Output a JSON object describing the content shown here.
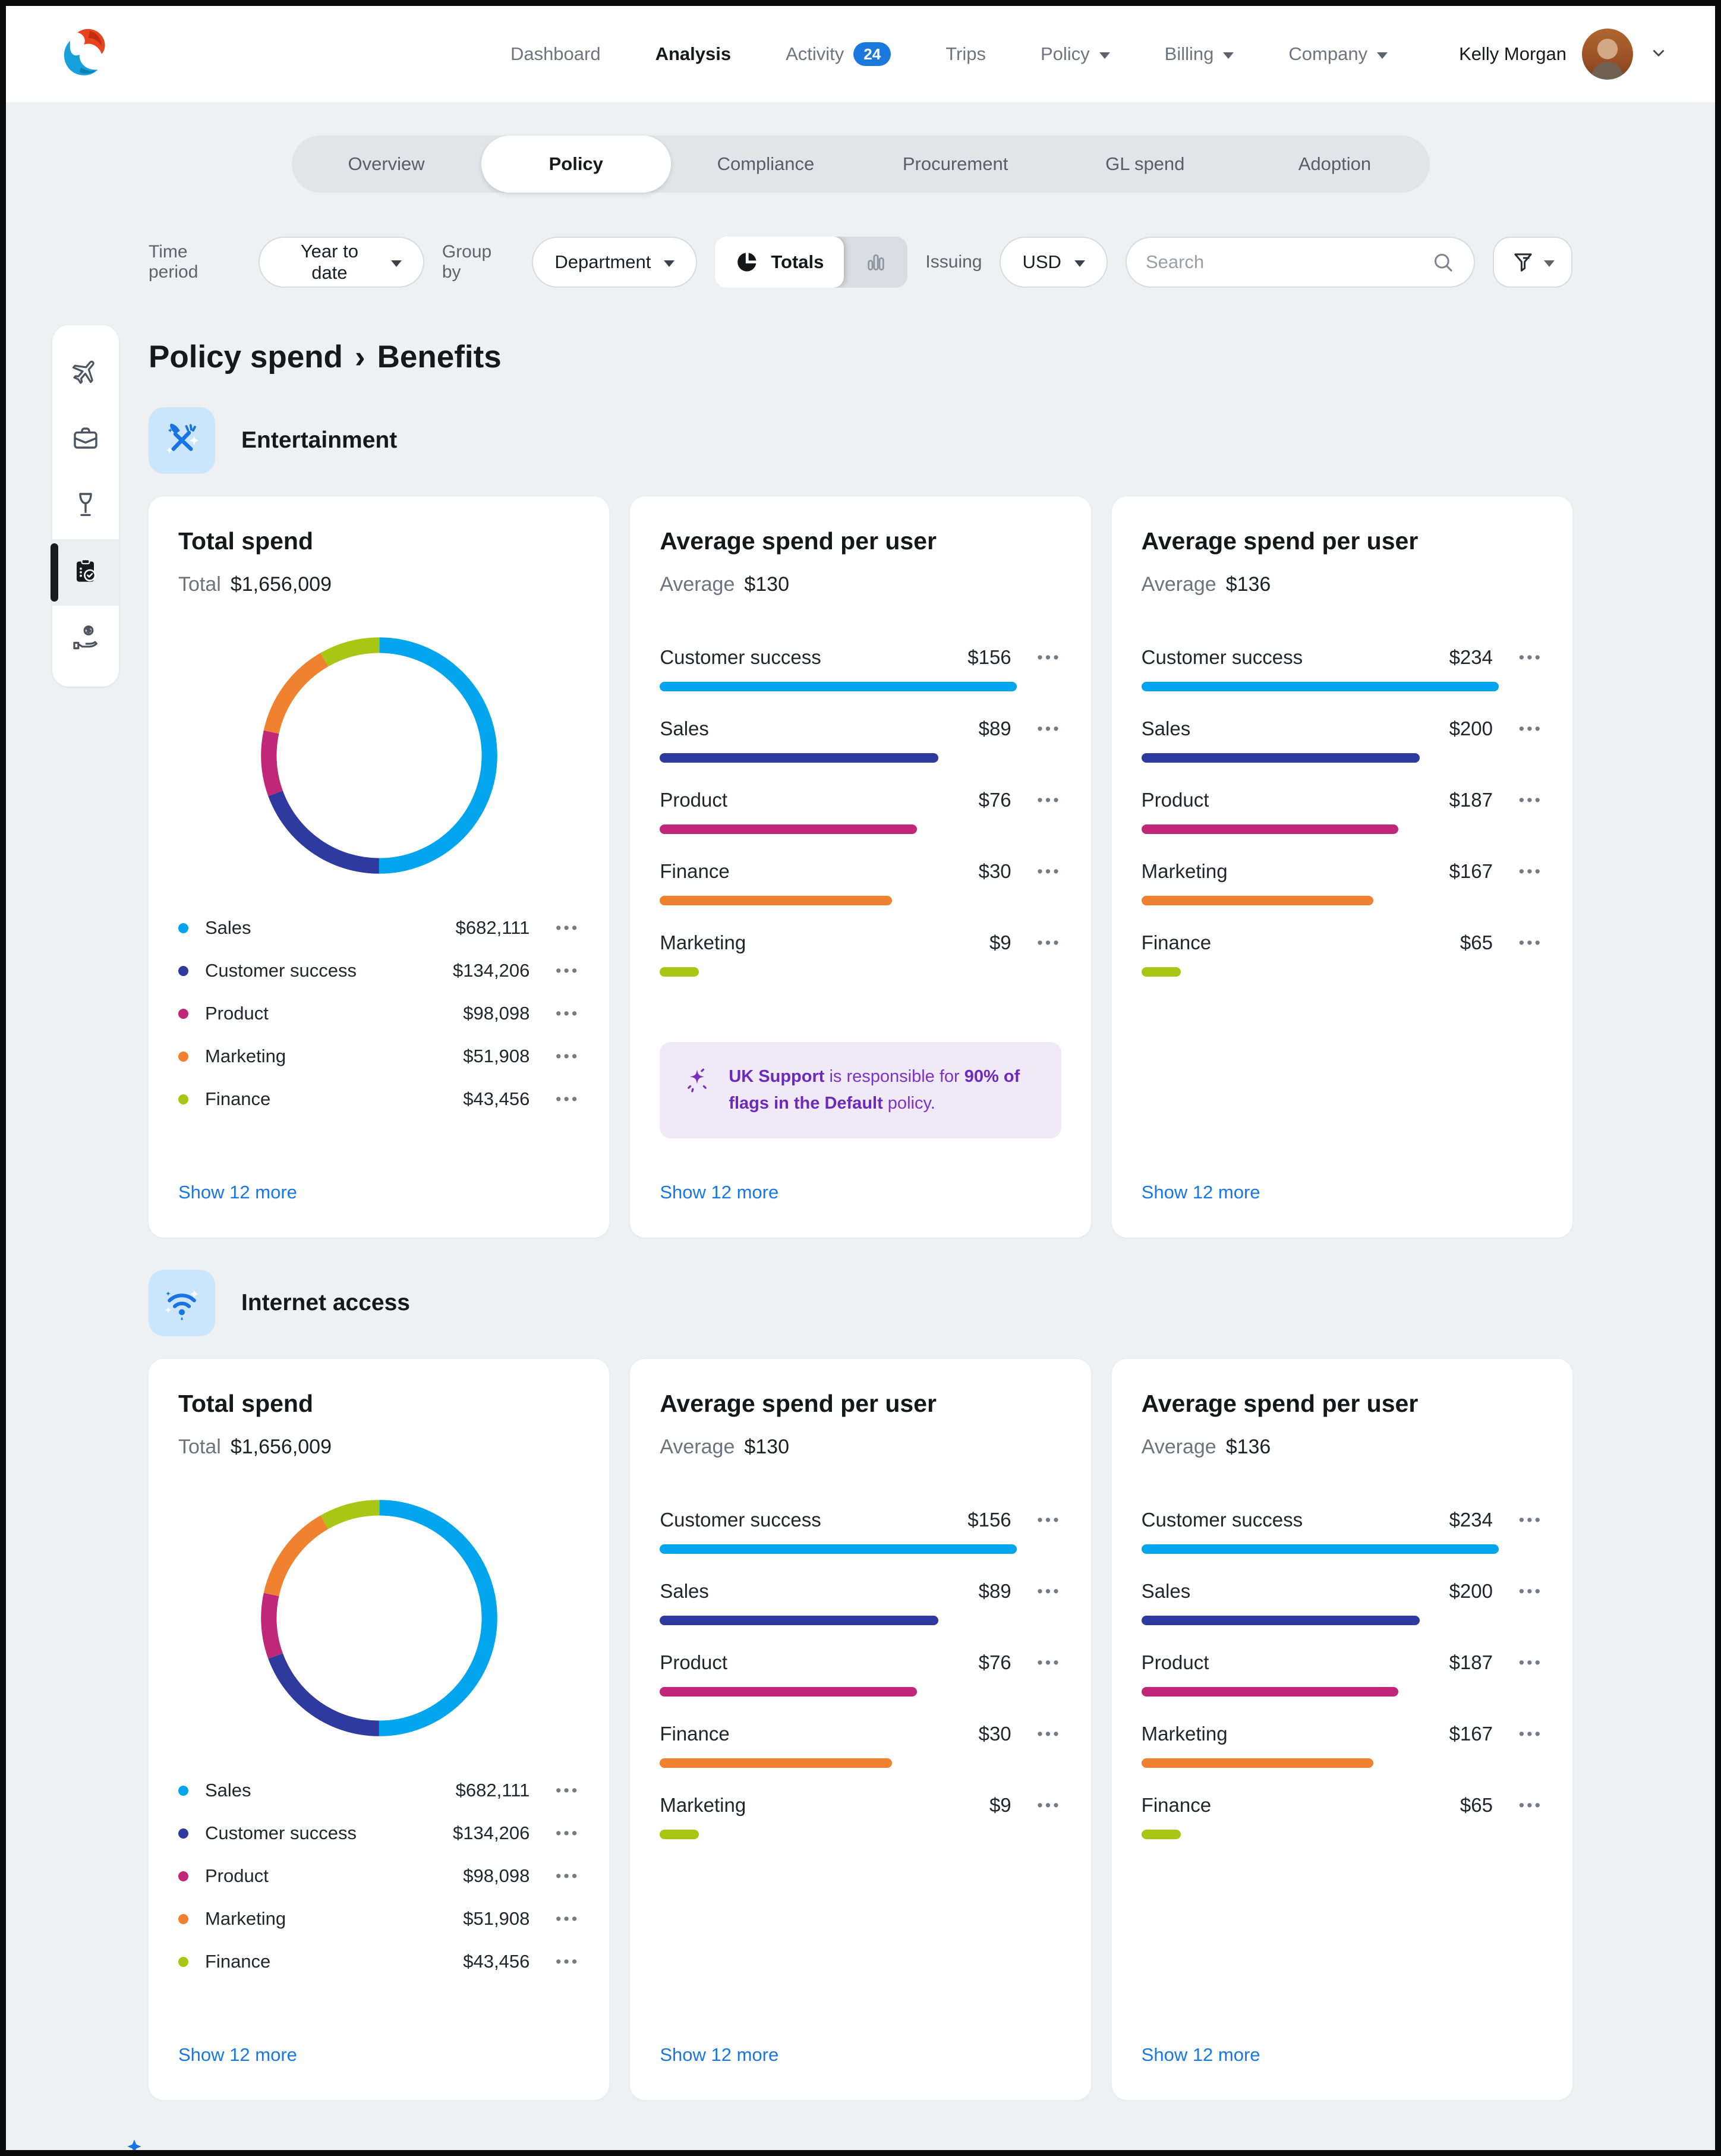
{
  "header": {
    "logo": "phoenix-swirl-logo",
    "nav_items": [
      {
        "label": "Dashboard"
      },
      {
        "label": "Analysis",
        "active": true
      },
      {
        "label": "Activity",
        "badge": "24"
      },
      {
        "label": "Trips"
      },
      {
        "label": "Policy",
        "dropdown": true
      },
      {
        "label": "Billing",
        "dropdown": true
      },
      {
        "label": "Company",
        "dropdown": true
      }
    ],
    "user": {
      "name": "Kelly Morgan",
      "avatar": "kelly-morgan-photo"
    }
  },
  "tabs": [
    {
      "label": "Overview"
    },
    {
      "label": "Policy",
      "active": true
    },
    {
      "label": "Compliance"
    },
    {
      "label": "Procurement"
    },
    {
      "label": "GL spend"
    },
    {
      "label": "Adoption"
    }
  ],
  "filters": {
    "time_period": {
      "label": "Time period",
      "value": "Year to date"
    },
    "group_by": {
      "label": "Group by",
      "value": "Department"
    },
    "view_toggle": {
      "active_label": "Totals",
      "active_icon": "pie-chart-icon",
      "inactive_icon": "bar-chart-icon"
    },
    "issuing": {
      "label": "Issuing",
      "value": "USD"
    },
    "search_placeholder": "Search"
  },
  "sidebar": [
    {
      "icon": "airplane-icon"
    },
    {
      "icon": "briefcase-icon"
    },
    {
      "icon": "wine-glass-icon"
    },
    {
      "icon": "clipboard-check-icon",
      "active": true
    },
    {
      "icon": "hand-dollar-icon"
    }
  ],
  "page_title": {
    "primary": "Policy spend",
    "separator": "›",
    "secondary": "Benefits"
  },
  "ui": {
    "menu_dots": "•••"
  },
  "colors": {
    "series": {
      "sky_blue": "#00a5ee",
      "indigo": "#2e3a9d",
      "magenta": "#c02779",
      "orange": "#f0812e",
      "lime": "#a9c614"
    },
    "link_blue": "#1877e8",
    "badge_blue": "#1b79dd",
    "callout_purple": "#7b33c9",
    "callout_bg": "#efe9f8",
    "section_icon_blue": "#1a73e2",
    "section_icon_bg": "#cbe6fa"
  },
  "sections": [
    {
      "title": "Entertainment",
      "icon": "dining-sparkle-icon",
      "cards": [
        {
          "type": "donut",
          "title": "Total spend",
          "metric_label": "Total",
          "metric_value": "$1,656,009",
          "show_more": "Show 12 more",
          "chart": {
            "type": "donut",
            "items": [
              {
                "label": "Sales",
                "value": "$682,111",
                "color": "#00a5ee",
                "fraction": 50
              },
              {
                "label": "Customer success",
                "value": "$134,206",
                "color": "#2e3a9d",
                "fraction": 19.4
              },
              {
                "label": "Product",
                "value": "$98,098",
                "color": "#c02779",
                "fraction": 9
              },
              {
                "label": "Marketing",
                "value": "$51,908",
                "color": "#f0812e",
                "fraction": 13.3
              },
              {
                "label": "Finance",
                "value": "$43,456",
                "color": "#a9c614",
                "fraction": 8.3
              }
            ]
          }
        },
        {
          "type": "bars",
          "title": "Average spend per user",
          "metric_label": "Average",
          "metric_value": "$130",
          "show_more": "Show 12 more",
          "chart": {
            "type": "bar",
            "items": [
              {
                "label": "Customer success",
                "value": "$156",
                "color": "#00a5ee",
                "width_pct": 100
              },
              {
                "label": "Sales",
                "value": "$89",
                "color": "#2e3a9d",
                "width_pct": 78
              },
              {
                "label": "Product",
                "value": "$76",
                "color": "#c02779",
                "width_pct": 72
              },
              {
                "label": "Finance",
                "value": "$30",
                "color": "#f0812e",
                "width_pct": 65
              },
              {
                "label": "Marketing",
                "value": "$9",
                "color": "#a9c614",
                "width_pct": 11
              }
            ]
          },
          "callout": {
            "icon": "sparkle-icon",
            "segments": [
              {
                "text": "UK Support",
                "bold": true
              },
              {
                "text": " is responsible for ",
                "bold": false
              },
              {
                "text": "90% of flags in the Default",
                "bold": true
              },
              {
                "text": " policy.",
                "bold": false
              }
            ]
          }
        },
        {
          "type": "bars",
          "title": "Average spend per user",
          "metric_label": "Average",
          "metric_value": "$136",
          "show_more": "Show 12 more",
          "chart": {
            "type": "bar",
            "items": [
              {
                "label": "Customer success",
                "value": "$234",
                "color": "#00a5ee",
                "width_pct": 100
              },
              {
                "label": "Sales",
                "value": "$200",
                "color": "#2e3a9d",
                "width_pct": 78
              },
              {
                "label": "Product",
                "value": "$187",
                "color": "#c02779",
                "width_pct": 72
              },
              {
                "label": "Marketing",
                "value": "$167",
                "color": "#f0812e",
                "width_pct": 65
              },
              {
                "label": "Finance",
                "value": "$65",
                "color": "#a9c614",
                "width_pct": 11
              }
            ]
          }
        }
      ]
    },
    {
      "title": "Internet access",
      "icon": "wifi-sparkle-icon",
      "cards": [
        {
          "type": "donut",
          "title": "Total spend",
          "metric_label": "Total",
          "metric_value": "$1,656,009",
          "show_more": "Show 12 more",
          "chart": {
            "type": "donut",
            "items": [
              {
                "label": "Sales",
                "value": "$682,111",
                "color": "#00a5ee",
                "fraction": 50
              },
              {
                "label": "Customer success",
                "value": "$134,206",
                "color": "#2e3a9d",
                "fraction": 19.4
              },
              {
                "label": "Product",
                "value": "$98,098",
                "color": "#c02779",
                "fraction": 9
              },
              {
                "label": "Marketing",
                "value": "$51,908",
                "color": "#f0812e",
                "fraction": 13.3
              },
              {
                "label": "Finance",
                "value": "$43,456",
                "color": "#a9c614",
                "fraction": 8.3
              }
            ]
          }
        },
        {
          "type": "bars",
          "title": "Average spend per user",
          "metric_label": "Average",
          "metric_value": "$130",
          "show_more": "Show 12 more",
          "chart": {
            "type": "bar",
            "items": [
              {
                "label": "Customer success",
                "value": "$156",
                "color": "#00a5ee",
                "width_pct": 100
              },
              {
                "label": "Sales",
                "value": "$89",
                "color": "#2e3a9d",
                "width_pct": 78
              },
              {
                "label": "Product",
                "value": "$76",
                "color": "#c02779",
                "width_pct": 72
              },
              {
                "label": "Finance",
                "value": "$30",
                "color": "#f0812e",
                "width_pct": 65
              },
              {
                "label": "Marketing",
                "value": "$9",
                "color": "#a9c614",
                "width_pct": 11
              }
            ]
          }
        },
        {
          "type": "bars",
          "title": "Average spend per user",
          "metric_label": "Average",
          "metric_value": "$136",
          "show_more": "Show 12 more",
          "chart": {
            "type": "bar",
            "items": [
              {
                "label": "Customer success",
                "value": "$234",
                "color": "#00a5ee",
                "width_pct": 100
              },
              {
                "label": "Sales",
                "value": "$200",
                "color": "#2e3a9d",
                "width_pct": 78
              },
              {
                "label": "Product",
                "value": "$187",
                "color": "#c02779",
                "width_pct": 72
              },
              {
                "label": "Marketing",
                "value": "$167",
                "color": "#f0812e",
                "width_pct": 65
              },
              {
                "label": "Finance",
                "value": "$65",
                "color": "#a9c614",
                "width_pct": 11
              }
            ]
          }
        }
      ]
    }
  ]
}
